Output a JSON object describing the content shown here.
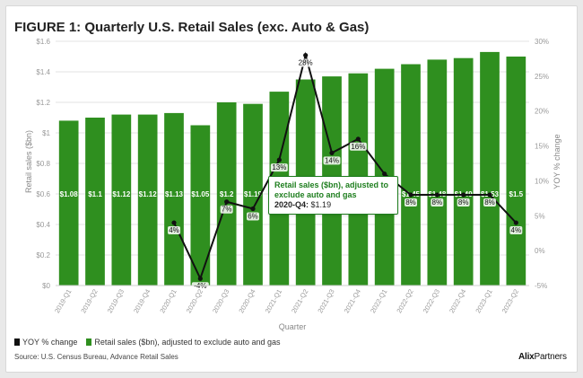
{
  "title": "FIGURE 1: Quarterly U.S. Retail Sales (exc. Auto & Gas)",
  "legend": {
    "yoy_label": "YOY % change",
    "sales_label": "Retail sales ($bn), adjusted to exclude auto and gas"
  },
  "source": "Source: U.S. Census Bureau, Advance Retail Sales",
  "logo": {
    "part1": "Alix",
    "part2": "Partners"
  },
  "tooltip": {
    "series": "Retail sales ($bn), adjusted to exclude auto and gas",
    "label": "2020-Q4:",
    "value": "$1.19"
  },
  "colors": {
    "bar": "#2f8f1f",
    "line": "#111111",
    "tooltip_border": "#1f7d1f"
  },
  "chart_data": {
    "type": "bar",
    "categories": [
      "2019-Q1",
      "2019-Q2",
      "2019-Q3",
      "2019-Q4",
      "2020-Q1",
      "2020-Q2",
      "2020-Q3",
      "2020-Q4",
      "2021-Q1",
      "2021-Q2",
      "2021-Q3",
      "2021-Q4",
      "2022-Q1",
      "2022-Q2",
      "2022-Q3",
      "2022-Q4",
      "2023-Q1",
      "2023-Q2"
    ],
    "xlabel": "Quarter",
    "ylabel": "Retail sales ($bn)",
    "y2label": "YOY % change",
    "ylim": [
      0,
      1.6
    ],
    "y2lim": [
      -5,
      30
    ],
    "yticks": [
      "$0",
      "$0.2",
      "$0.4",
      "$0.6",
      "$0.8",
      "$1",
      "$1.2",
      "$1.4",
      "$1.6"
    ],
    "y2ticks": [
      "-5%",
      "0%",
      "5%",
      "10%",
      "15%",
      "20%",
      "25%",
      "30%"
    ],
    "series": [
      {
        "name": "Retail sales ($bn), adjusted to exclude auto and gas",
        "type": "bar",
        "values": [
          1.08,
          1.1,
          1.12,
          1.12,
          1.13,
          1.05,
          1.2,
          1.19,
          1.27,
          1.35,
          1.37,
          1.39,
          1.42,
          1.45,
          1.48,
          1.49,
          1.53,
          1.5
        ],
        "labels": [
          "$1.08",
          "$1.1",
          "$1.12",
          "$1.12",
          "$1.13",
          "$1.05",
          "$1.2",
          "$1.19",
          "",
          "",
          "",
          "",
          "",
          "$1.45",
          "$1.48",
          "$1.49",
          "$1.53",
          "$1.5"
        ]
      },
      {
        "name": "YOY % change",
        "type": "line",
        "axis": "right",
        "values": [
          null,
          null,
          null,
          null,
          4,
          -4,
          7,
          6,
          13,
          28,
          14,
          16,
          11,
          8,
          8,
          8,
          8,
          4
        ],
        "labels": [
          "",
          "",
          "",
          "",
          "4%",
          "-4%",
          "7%",
          "6%",
          "13%",
          "28%",
          "14%",
          "16%",
          "",
          "8%",
          "8%",
          "8%",
          "8%",
          "4%"
        ]
      }
    ],
    "grid": true
  }
}
